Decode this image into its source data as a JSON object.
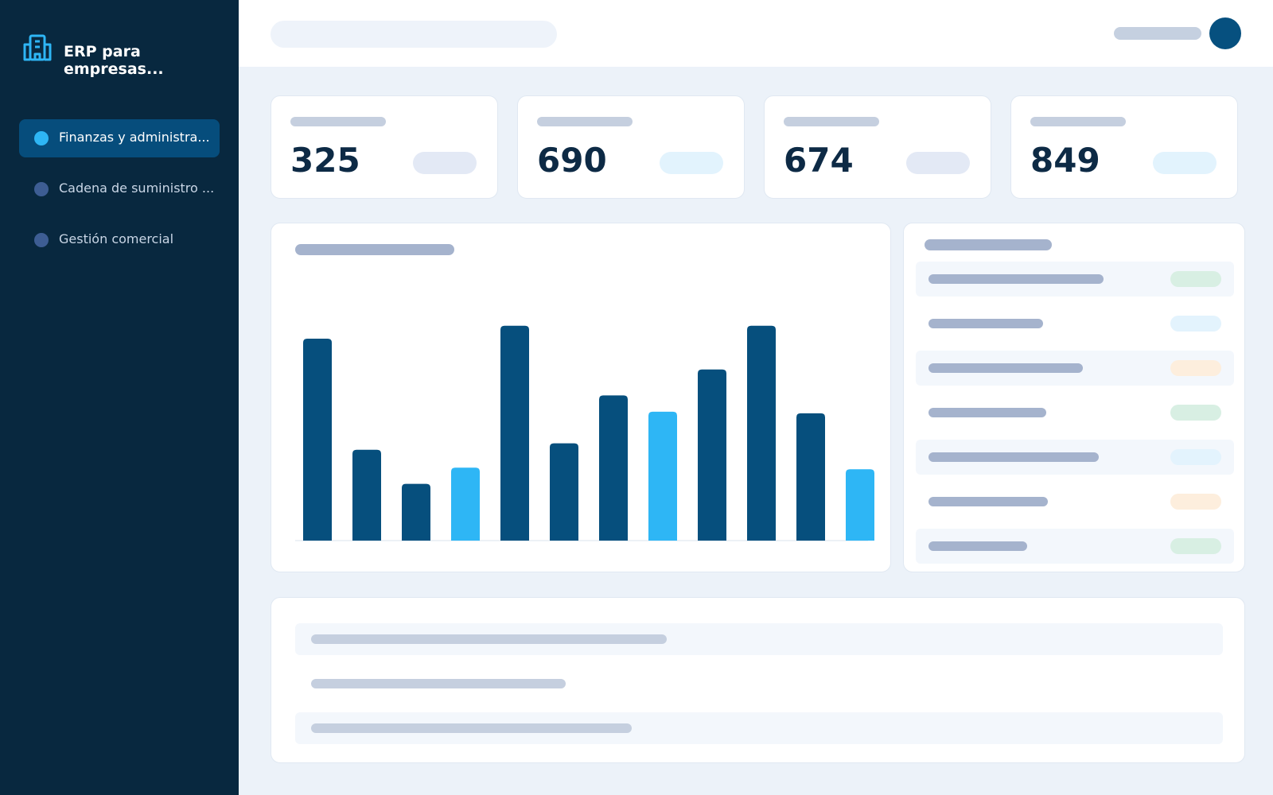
{
  "sidebar": {
    "title": "ERP para empresas...",
    "nav": [
      "Finanzas y administra...",
      "Cadena de suministro ...",
      "Gestión comercial"
    ]
  },
  "kpis": [
    325,
    690,
    674,
    849
  ],
  "chart_data": {
    "type": "bar",
    "values": [
      249,
      112,
      70,
      90,
      265,
      120,
      179,
      159,
      211,
      265,
      157,
      88
    ],
    "colors": [
      "#064f7d",
      "#064f7d",
      "#064f7d",
      "#2eb6f5",
      "#064f7d",
      "#064f7d",
      "#064f7d",
      "#2eb6f5",
      "#064f7d",
      "#064f7d",
      "#064f7d",
      "#2eb6f5"
    ],
    "ylim": [
      0,
      300
    ]
  }
}
